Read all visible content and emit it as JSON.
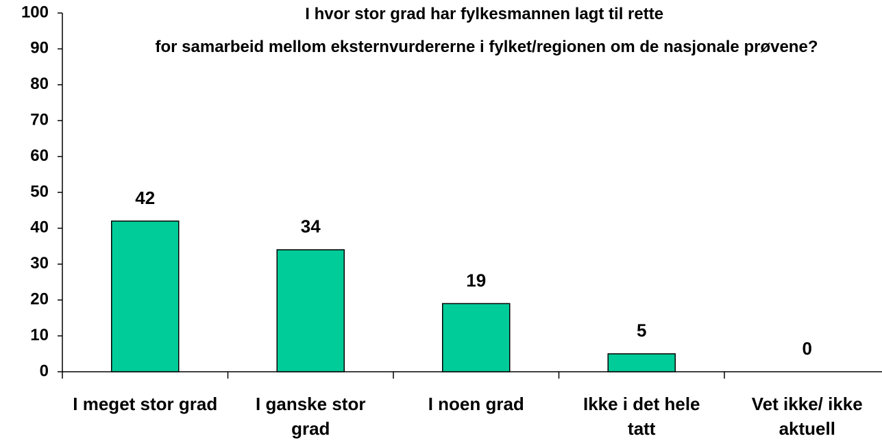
{
  "chart_data": {
    "type": "bar",
    "title": "I hvor stor grad har fylkesmannen lagt til rette for samarbeid mellom eksternvurdererne i fylket/regionen om de nasjonale prøvene?",
    "categories": [
      "I meget stor grad",
      "I ganske stor grad",
      "I noen grad",
      "Ikke i det hele tatt",
      "Vet ikke/ ikke aktuell"
    ],
    "values": [
      42,
      34,
      19,
      5,
      0
    ],
    "color": "#00cc99",
    "ylim": [
      0,
      100
    ],
    "yticks": [
      0,
      10,
      20,
      30,
      40,
      50,
      60,
      70,
      80,
      90,
      100
    ],
    "grid": false
  }
}
